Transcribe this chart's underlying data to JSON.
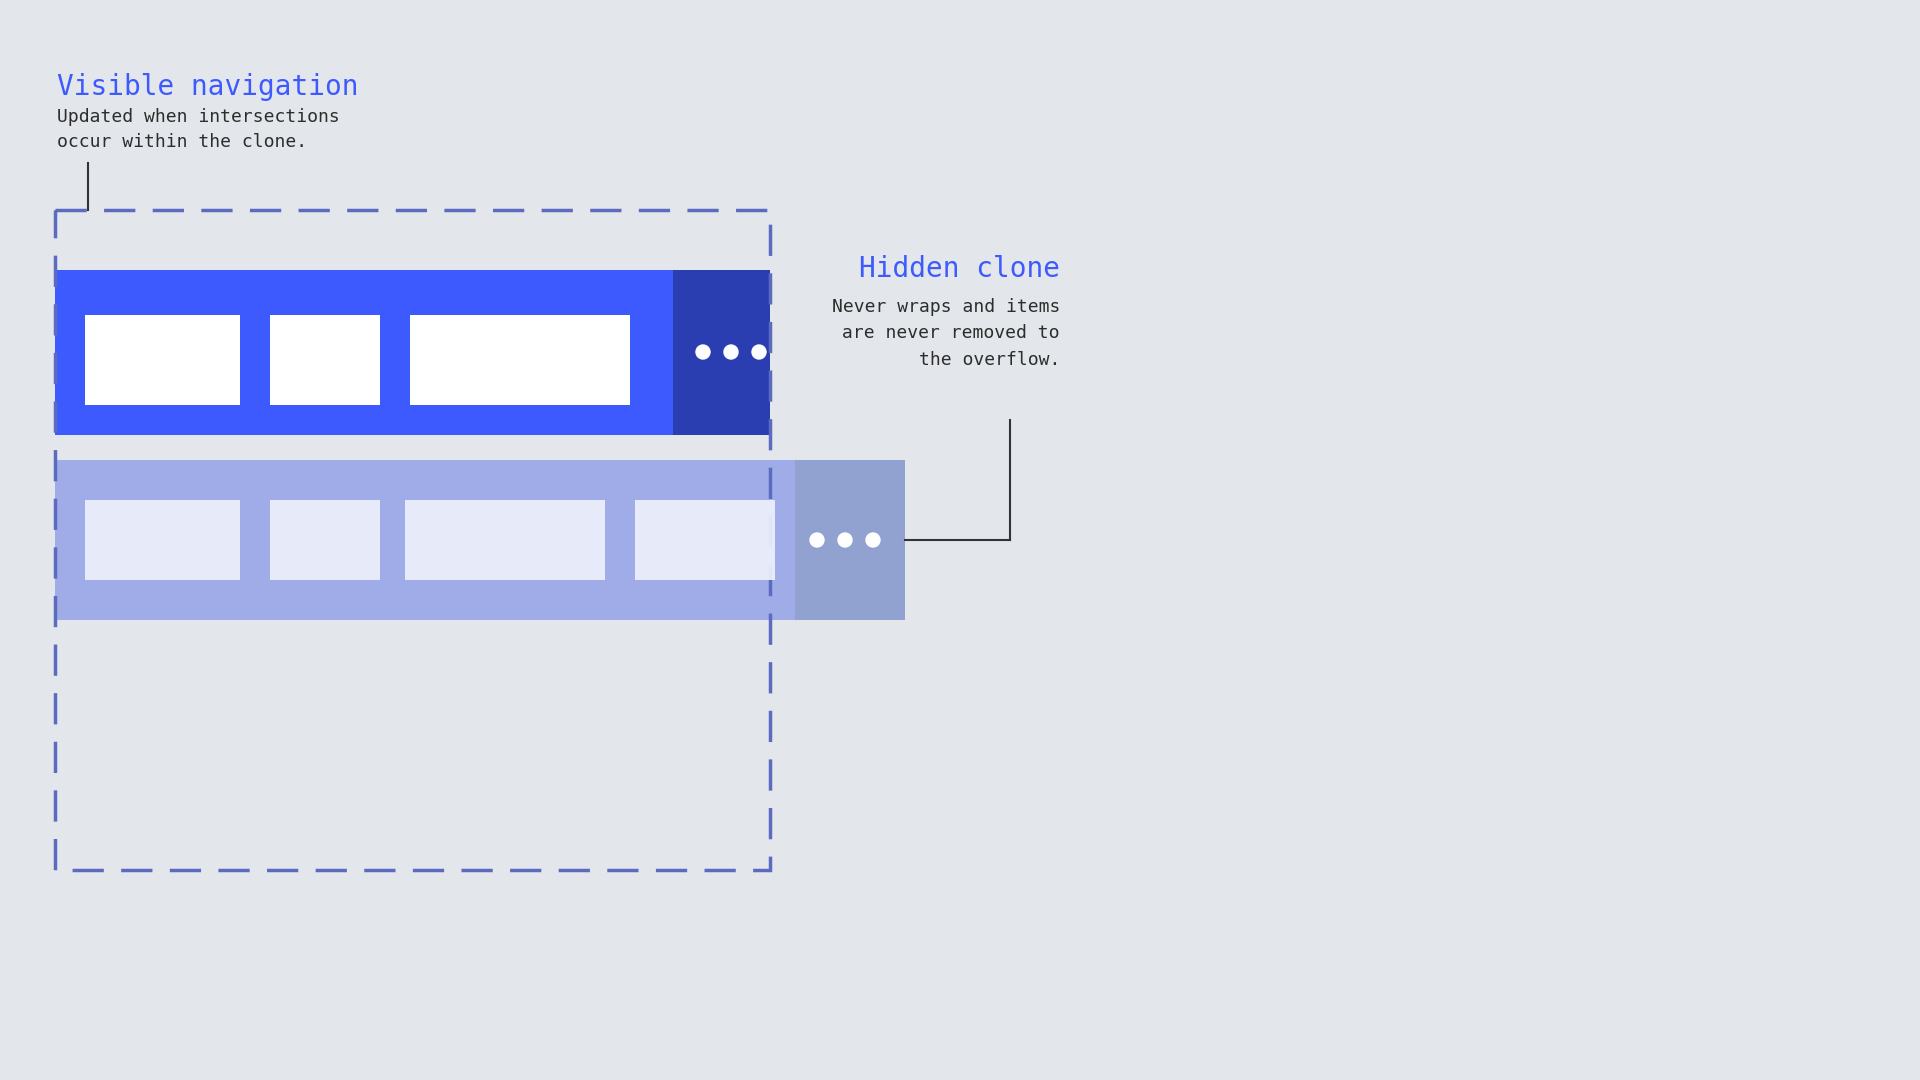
{
  "bg_color": "#e3e6ea",
  "title_visible": "Visible navigation",
  "title_visible_color": "#3d5afe",
  "desc_visible": "Updated when intersections\noccur within the clone.",
  "desc_color": "#2d2d2d",
  "title_hidden": "Hidden clone",
  "title_hidden_color": "#3d5afe",
  "desc_hidden": "Never wraps and items\nare never removed to\nthe overflow.",
  "font_family": "monospace",
  "font_size_title": 20,
  "font_size_desc": 13,
  "wrapper_color": "#5c6bc0",
  "nav_color": "#3d5afe",
  "nav_dark_color": "#2a3eb1",
  "clone_main_color": "#8294e8",
  "clone_dark_color": "#7b8cc7",
  "white": "#ffffff",
  "clone_btn_color": "#eef0fa",
  "annot_line_color": "#333333"
}
